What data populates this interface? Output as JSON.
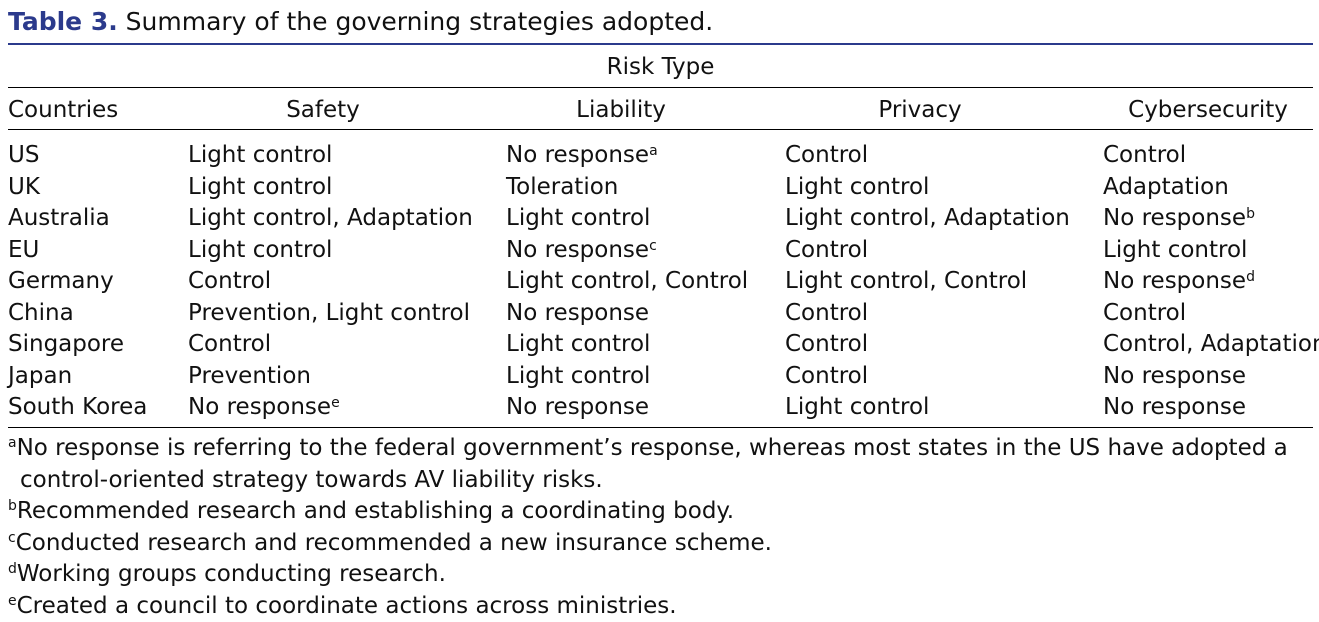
{
  "caption": {
    "label": "Table 3.",
    "text": " Summary of the governing strategies adopted."
  },
  "table": {
    "spanner": "Risk Type",
    "headers": {
      "countries": "Countries",
      "safety": "Safety",
      "liability": "Liability",
      "privacy": "Privacy",
      "cybersecurity": "Cybersecurity"
    },
    "rows": [
      {
        "country": "US",
        "safety": "Light control",
        "safety_sup": "",
        "liability": "No response",
        "liability_sup": "a",
        "privacy": "Control",
        "cyber": "Control",
        "cyber_sup": ""
      },
      {
        "country": "UK",
        "safety": "Light control",
        "safety_sup": "",
        "liability": "Toleration",
        "liability_sup": "",
        "privacy": "Light control",
        "cyber": "Adaptation",
        "cyber_sup": ""
      },
      {
        "country": "Australia",
        "safety": "Light control, Adaptation",
        "safety_sup": "",
        "liability": "Light control",
        "liability_sup": "",
        "privacy": "Light control, Adaptation",
        "cyber": "No response",
        "cyber_sup": "b"
      },
      {
        "country": "EU",
        "safety": "Light control",
        "safety_sup": "",
        "liability": "No response",
        "liability_sup": "c",
        "privacy": "Control",
        "cyber": "Light control",
        "cyber_sup": ""
      },
      {
        "country": "Germany",
        "safety": "Control",
        "safety_sup": "",
        "liability": "Light control, Control",
        "liability_sup": "",
        "privacy": "Light control, Control",
        "cyber": "No response",
        "cyber_sup": "d"
      },
      {
        "country": "China",
        "safety": "Prevention, Light control",
        "safety_sup": "",
        "liability": "No response",
        "liability_sup": "",
        "privacy": "Control",
        "cyber": "Control",
        "cyber_sup": ""
      },
      {
        "country": "Singapore",
        "safety": "Control",
        "safety_sup": "",
        "liability": "Light control",
        "liability_sup": "",
        "privacy": "Control",
        "cyber": "Control, Adaptation",
        "cyber_sup": ""
      },
      {
        "country": "Japan",
        "safety": "Prevention",
        "safety_sup": "",
        "liability": "Light control",
        "liability_sup": "",
        "privacy": "Control",
        "cyber": "No response",
        "cyber_sup": ""
      },
      {
        "country": "South Korea",
        "safety": "No response",
        "safety_sup": "e",
        "liability": "No response",
        "liability_sup": "",
        "privacy": "Light control",
        "cyber": "No response",
        "cyber_sup": ""
      }
    ]
  },
  "footnotes": [
    {
      "mark": "a",
      "text": "No response is referring to the federal government’s response, whereas most states in the US have adopted a control-oriented strategy towards AV liability risks."
    },
    {
      "mark": "b",
      "text": "Recommended research and establishing a coordinating body."
    },
    {
      "mark": "c",
      "text": "Conducted research and recommended a new insurance scheme."
    },
    {
      "mark": "d",
      "text": "Working groups conducting research."
    },
    {
      "mark": "e",
      "text": "Created a council to coordinate actions across ministries."
    }
  ]
}
